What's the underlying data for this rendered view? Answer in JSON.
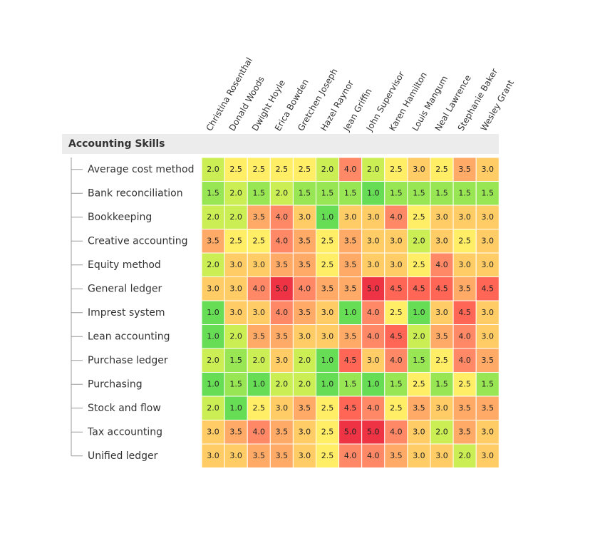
{
  "header": {
    "title": "Accounting Skills"
  },
  "columns": [
    "Christina Rosenthal",
    "Donald Woods",
    "Dwight Hoyle",
    "Erica Bowden",
    "Gretchen Joseph",
    "Hazel Raynor",
    "Jean Griffin",
    "John Supervisor",
    "Karen Hamilton",
    "Louis Mangum",
    "Neal Lawrence",
    "Stephanie Baker",
    "Wesley Grant"
  ],
  "rows": [
    {
      "label": "Average cost method",
      "cells": [
        "2.0",
        "2.5",
        "2.5",
        "2.5",
        "2.5",
        "2.0",
        "4.0",
        "2.0",
        "2.5",
        "3.0",
        "2.5",
        "3.5",
        "3.0"
      ]
    },
    {
      "label": "Bank reconciliation",
      "cells": [
        "1.5",
        "2.0",
        "1.5",
        "2.0",
        "1.5",
        "1.5",
        "1.5",
        "1.0",
        "1.5",
        "1.5",
        "1.5",
        "1.5",
        "1.5"
      ]
    },
    {
      "label": "Bookkeeping",
      "cells": [
        "2.0",
        "2.0",
        "3.5",
        "4.0",
        "3.0",
        "1.0",
        "3.0",
        "3.0",
        "4.0",
        "2.5",
        "3.0",
        "3.0",
        "3.0"
      ]
    },
    {
      "label": "Creative accounting",
      "cells": [
        "3.5",
        "2.5",
        "2.5",
        "4.0",
        "3.5",
        "2.5",
        "3.5",
        "3.0",
        "3.0",
        "2.0",
        "3.0",
        "2.5",
        "3.0"
      ]
    },
    {
      "label": "Equity method",
      "cells": [
        "2.0",
        "3.0",
        "3.0",
        "3.5",
        "3.5",
        "2.5",
        "3.5",
        "3.0",
        "3.0",
        "2.5",
        "4.0",
        "3.0",
        "3.0"
      ]
    },
    {
      "label": "General ledger",
      "cells": [
        "3.0",
        "3.0",
        "4.0",
        "5.0",
        "4.0",
        "3.5",
        "3.5",
        "5.0",
        "4.5",
        "4.5",
        "4.5",
        "3.5",
        "4.5"
      ]
    },
    {
      "label": "Imprest system",
      "cells": [
        "1.0",
        "3.0",
        "3.0",
        "4.0",
        "3.5",
        "3.0",
        "1.0",
        "4.0",
        "2.5",
        "1.0",
        "3.0",
        "4.5",
        "3.0"
      ]
    },
    {
      "label": "Lean accounting",
      "cells": [
        "1.0",
        "2.0",
        "3.5",
        "3.5",
        "3.0",
        "3.0",
        "3.5",
        "4.0",
        "4.5",
        "2.0",
        "3.5",
        "4.0",
        "3.0"
      ]
    },
    {
      "label": "Purchase ledger",
      "cells": [
        "2.0",
        "1.5",
        "2.0",
        "3.0",
        "2.0",
        "1.0",
        "4.5",
        "3.0",
        "4.0",
        "1.5",
        "2.5",
        "4.0",
        "3.5"
      ]
    },
    {
      "label": "Purchasing",
      "cells": [
        "1.0",
        "1.5",
        "1.0",
        "2.0",
        "2.0",
        "1.0",
        "1.5",
        "1.0",
        "1.5",
        "2.5",
        "1.5",
        "2.5",
        "1.5"
      ]
    },
    {
      "label": "Stock and flow",
      "cells": [
        "2.0",
        "1.0",
        "2.5",
        "3.0",
        "3.5",
        "2.5",
        "4.5",
        "4.0",
        "2.5",
        "3.5",
        "3.0",
        "3.5",
        "3.5"
      ]
    },
    {
      "label": "Tax accounting",
      "cells": [
        "3.0",
        "3.5",
        "4.0",
        "3.5",
        "3.0",
        "2.5",
        "5.0",
        "5.0",
        "4.0",
        "3.0",
        "2.0",
        "3.5",
        "3.0"
      ]
    },
    {
      "label": "Unified ledger",
      "cells": [
        "3.0",
        "3.0",
        "3.5",
        "3.5",
        "3.0",
        "2.5",
        "4.0",
        "4.0",
        "3.5",
        "3.0",
        "3.0",
        "2.0",
        "3.0"
      ]
    }
  ]
}
